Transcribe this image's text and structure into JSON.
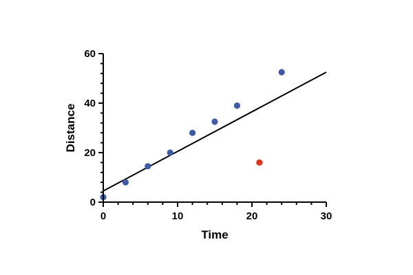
{
  "chart_data": {
    "type": "scatter",
    "xlabel": "Time",
    "ylabel": "Distance",
    "xlim": [
      0,
      30
    ],
    "ylim": [
      0,
      60
    ],
    "x_ticks": [
      0,
      10,
      20,
      30
    ],
    "y_ticks": [
      0,
      20,
      40,
      60
    ],
    "grid": false,
    "series": [
      {
        "points": [
          {
            "x": 0,
            "y": 2
          },
          {
            "x": 3,
            "y": 8
          },
          {
            "x": 6,
            "y": 14.5
          },
          {
            "x": 9,
            "y": 20
          },
          {
            "x": 12,
            "y": 28
          },
          {
            "x": 15,
            "y": 32.5
          },
          {
            "x": 18,
            "y": 39
          },
          {
            "x": 24,
            "y": 52.5
          }
        ],
        "color": "#3f5aa8"
      },
      {
        "points": [
          {
            "x": 21,
            "y": 16
          }
        ],
        "color": "#e8321e"
      }
    ],
    "fit_line": {
      "from": {
        "x": 0,
        "y": 4.5
      },
      "to": {
        "x": 30,
        "y": 52.5
      },
      "color": "#000000"
    }
  }
}
